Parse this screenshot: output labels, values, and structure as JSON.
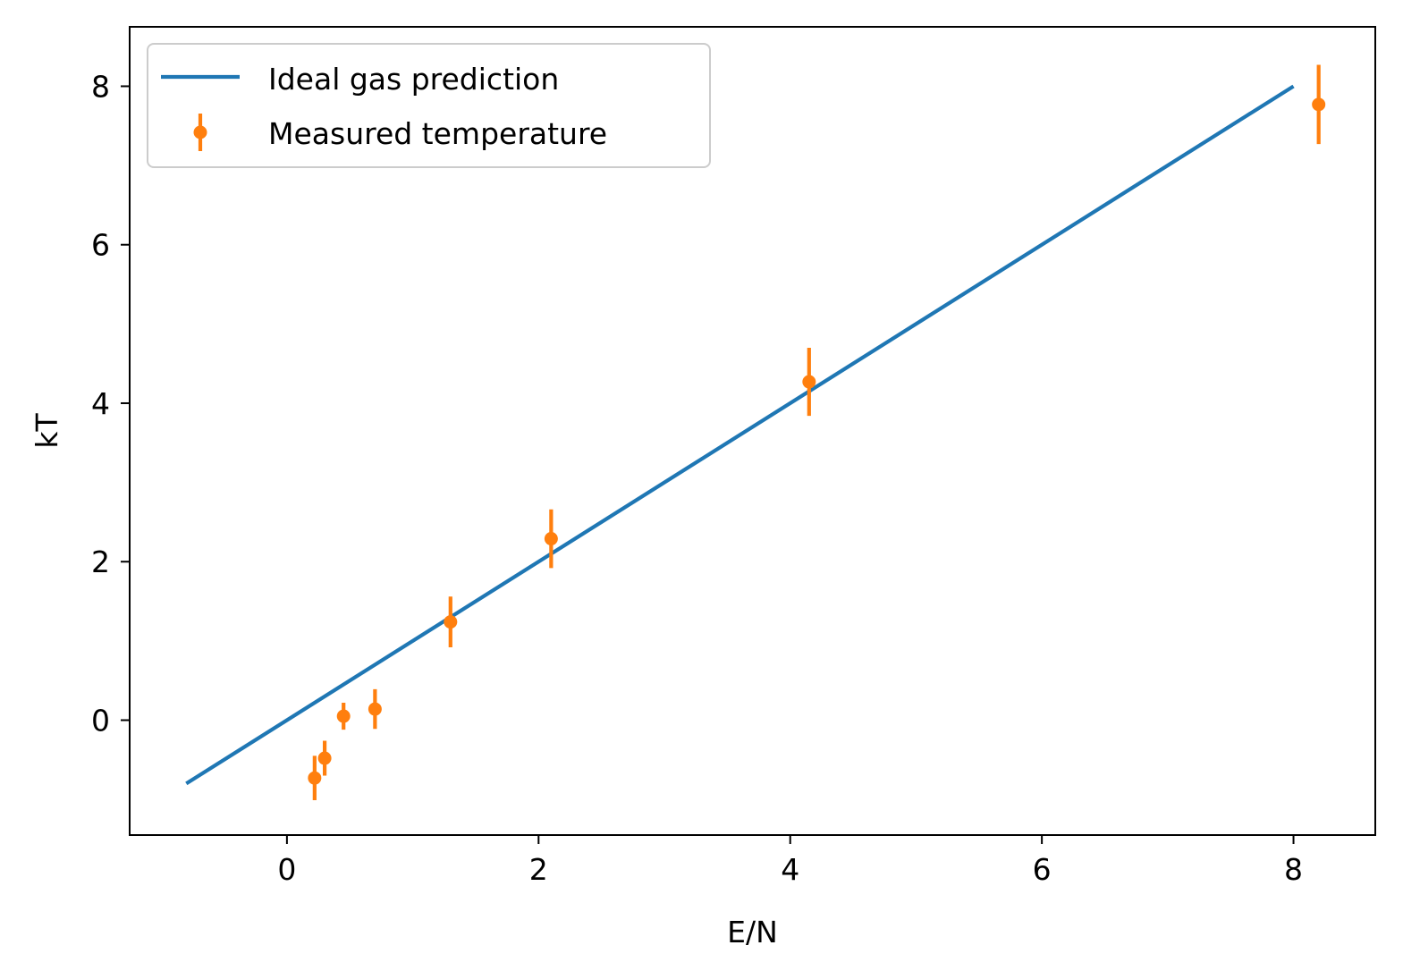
{
  "chart_data": {
    "type": "scatter",
    "title": "",
    "xlabel": "E/N",
    "ylabel": "kT",
    "xlim": [
      -1.25,
      8.65
    ],
    "ylim": [
      -1.45,
      8.75
    ],
    "x_ticks": [
      0,
      2,
      4,
      6,
      8
    ],
    "y_ticks": [
      0,
      2,
      4,
      6,
      8
    ],
    "grid": false,
    "legend_position": "upper-left",
    "series": [
      {
        "name": "Ideal gas prediction",
        "kind": "line",
        "color": "#1f77b4",
        "x": [
          -0.8,
          8.0
        ],
        "y": [
          -0.8,
          8.0
        ]
      },
      {
        "name": "Measured temperature",
        "kind": "errorbar",
        "color": "#ff7f0e",
        "x": [
          0.22,
          0.3,
          0.45,
          0.7,
          1.3,
          2.1,
          4.15,
          8.2
        ],
        "y": [
          -0.73,
          -0.48,
          0.05,
          0.14,
          1.24,
          2.29,
          4.27,
          7.77
        ],
        "yerr": [
          0.28,
          0.22,
          0.17,
          0.25,
          0.32,
          0.37,
          0.43,
          0.5
        ]
      }
    ]
  }
}
